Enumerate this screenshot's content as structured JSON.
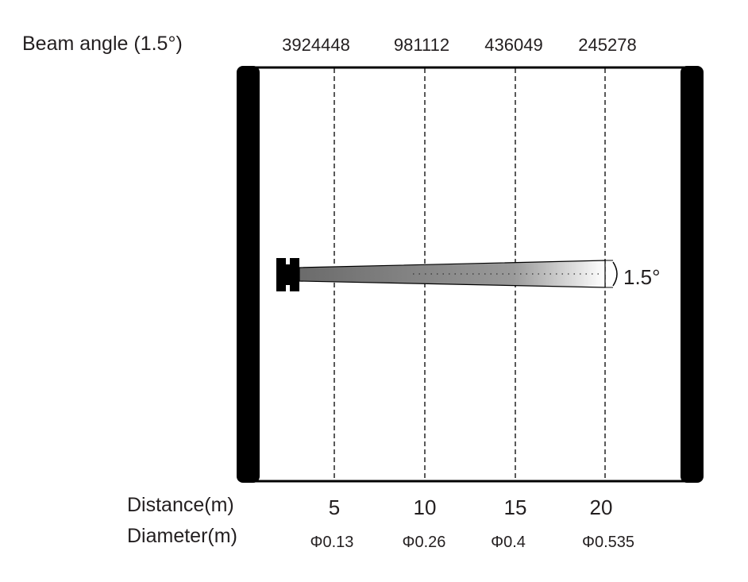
{
  "beam_angle_label": "Beam angle (1.5°)",
  "angle_marker": "1.5°",
  "columns": [
    {
      "lux": "3924448",
      "distance": "5",
      "diameter": "Φ0.13"
    },
    {
      "lux": "981112",
      "distance": "10",
      "diameter": "Φ0.26"
    },
    {
      "lux": "436049",
      "distance": "15",
      "diameter": "Φ0.4"
    },
    {
      "lux": "245278",
      "distance": "20",
      "diameter": "Φ0.535"
    }
  ],
  "distance_label": "Distance(m)",
  "diameter_label": "Diameter(m)",
  "colors": {
    "ink": "#000000",
    "text": "#231f20",
    "beam_start": "#6b6b6b",
    "beam_end": "#ffffff"
  }
}
